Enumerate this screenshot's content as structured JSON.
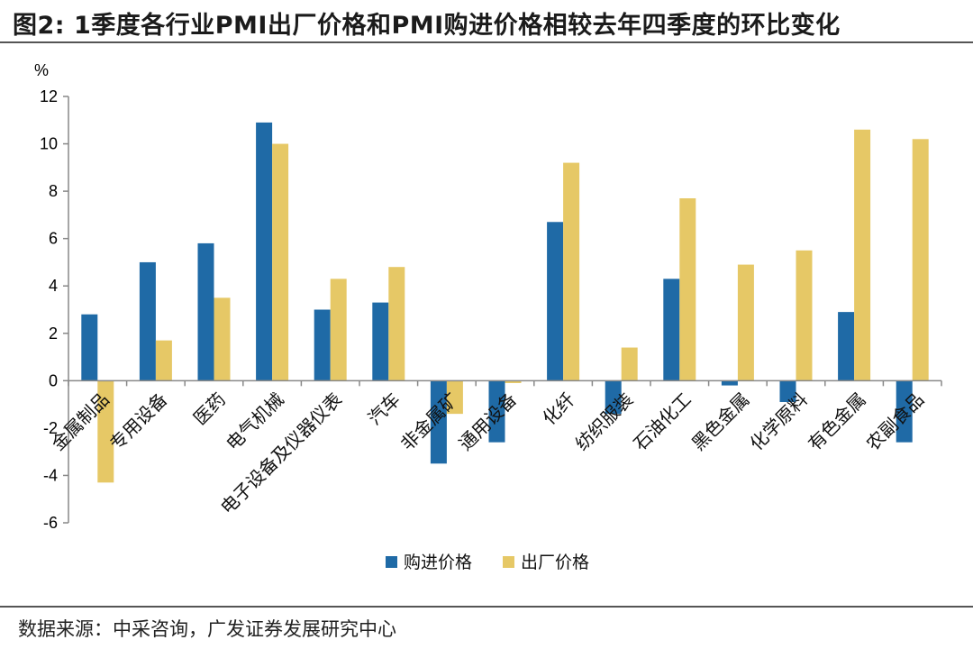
{
  "header": {
    "title": "图2:  1季度各行业PMI出厂价格和PMI购进价格相较去年四季度的环比变化"
  },
  "footer": {
    "source": "数据来源：中采咨询，广发证券发展研究中心"
  },
  "colors": {
    "purchase": "#1f6aa6",
    "output": "#e6c866",
    "axis": "#888888"
  },
  "chart_data": {
    "type": "bar",
    "title": "1季度各行业PMI出厂价格和PMI购进价格相较去年四季度的环比变化",
    "ylabel": "%",
    "xlabel": "",
    "ylim": [
      -6,
      12
    ],
    "yticks": [
      -6,
      -4,
      -2,
      0,
      2,
      4,
      6,
      8,
      10,
      12
    ],
    "grid": false,
    "legend": "bottom-center",
    "categories": [
      "金属制品",
      "专用设备",
      "医药",
      "电气机械",
      "电子设备及仪器仪表",
      "汽车",
      "非金属矿",
      "通用设备",
      "化纤",
      "纺织服装",
      "石油化工",
      "黑色金属",
      "化学原料",
      "有色金属",
      "农副食品"
    ],
    "series": [
      {
        "name": "购进价格",
        "values": [
          2.8,
          5.0,
          5.8,
          10.9,
          3.0,
          3.3,
          -3.5,
          -2.6,
          6.7,
          -1.4,
          4.3,
          -0.2,
          -0.9,
          2.9,
          -2.6
        ]
      },
      {
        "name": "出厂价格",
        "values": [
          -4.3,
          1.7,
          3.5,
          10.0,
          4.3,
          4.8,
          -1.4,
          -0.1,
          9.2,
          1.4,
          7.7,
          4.9,
          5.5,
          10.6,
          10.2
        ]
      }
    ]
  }
}
